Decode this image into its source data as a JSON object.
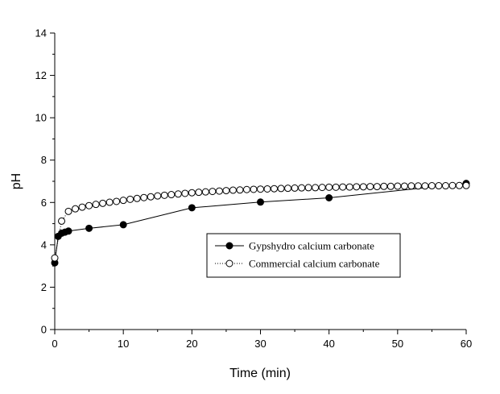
{
  "chart_data": {
    "type": "line",
    "xlabel": "Time (min)",
    "ylabel": "pH",
    "xlim": [
      0,
      60
    ],
    "ylim": [
      0,
      14
    ],
    "x_ticks": [
      "0",
      "10",
      "20",
      "30",
      "40",
      "50",
      "60"
    ],
    "y_ticks": [
      "0",
      "2",
      "4",
      "6",
      "8",
      "10",
      "12",
      "14"
    ],
    "grid": false,
    "legend_position": "center-right",
    "series": [
      {
        "name": "Gypshydro calcium carbonate",
        "marker": "filled-circle",
        "line": "solid",
        "color": "#000000",
        "x": [
          0,
          0.5,
          1,
          1.5,
          2,
          5,
          10,
          20,
          30,
          40,
          60
        ],
        "y": [
          3.15,
          4.4,
          4.55,
          4.6,
          4.65,
          4.78,
          4.95,
          5.75,
          6.02,
          6.22,
          6.9
        ]
      },
      {
        "name": "Commercial calcium carbonate",
        "marker": "open-circle",
        "line": "dotted",
        "color": "#000000",
        "x": [
          0,
          1,
          2,
          3,
          4,
          5,
          6,
          7,
          8,
          9,
          10,
          11,
          12,
          13,
          14,
          15,
          16,
          17,
          18,
          19,
          20,
          21,
          22,
          23,
          24,
          25,
          26,
          27,
          28,
          29,
          30,
          31,
          32,
          33,
          34,
          35,
          36,
          37,
          38,
          39,
          40,
          41,
          42,
          43,
          44,
          45,
          46,
          47,
          48,
          49,
          50,
          51,
          52,
          53,
          54,
          55,
          56,
          57,
          58,
          59,
          60
        ],
        "y": [
          3.38,
          5.12,
          5.58,
          5.7,
          5.78,
          5.85,
          5.91,
          5.96,
          6.01,
          6.05,
          6.1,
          6.15,
          6.19,
          6.23,
          6.27,
          6.31,
          6.34,
          6.37,
          6.4,
          6.43,
          6.46,
          6.48,
          6.5,
          6.52,
          6.54,
          6.56,
          6.58,
          6.59,
          6.61,
          6.62,
          6.63,
          6.64,
          6.65,
          6.66,
          6.67,
          6.68,
          6.69,
          6.7,
          6.7,
          6.71,
          6.72,
          6.72,
          6.73,
          6.73,
          6.74,
          6.74,
          6.75,
          6.75,
          6.76,
          6.76,
          6.77,
          6.77,
          6.78,
          6.78,
          6.78,
          6.79,
          6.79,
          6.79,
          6.8,
          6.8,
          6.8
        ]
      }
    ]
  }
}
